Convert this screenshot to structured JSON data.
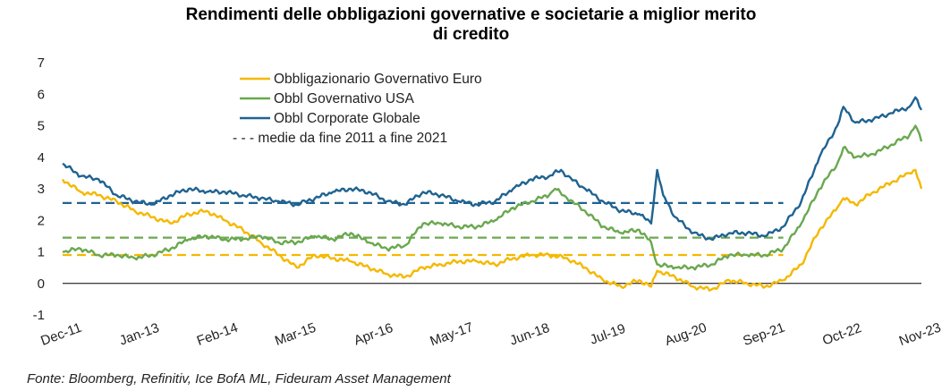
{
  "chart_data": {
    "type": "line",
    "title_line1": "Rendimenti delle obbligazioni governative e societarie a miglior merito",
    "title_line2": "di credito",
    "xlabel": "",
    "ylabel": "",
    "ylim": [
      -1,
      7
    ],
    "yticks": [
      "-1",
      "0",
      "1",
      "2",
      "3",
      "4",
      "5",
      "6",
      "7"
    ],
    "x_range": [
      "2011-12",
      "2023-11"
    ],
    "x_tick_labels": [
      "Dec-11",
      "Jan-13",
      "Feb-14",
      "Mar-15",
      "Apr-16",
      "May-17",
      "Jun-18",
      "Jul-19",
      "Aug-20",
      "Sep-21",
      "Oct-22",
      "Nov-23"
    ],
    "x_tick_dates": [
      "2011-12",
      "2013-01",
      "2014-02",
      "2015-03",
      "2016-04",
      "2017-05",
      "2018-06",
      "2019-07",
      "2020-08",
      "2021-09",
      "2022-10",
      "2023-11"
    ],
    "grid": false,
    "legend_position": "top-left",
    "series": [
      {
        "name": "Obbligazionario Governativo Euro",
        "color": "#f5b800",
        "points": [
          [
            "2011-12",
            3.3
          ],
          [
            "2012-03",
            2.9
          ],
          [
            "2012-06",
            2.8
          ],
          [
            "2012-09",
            2.6
          ],
          [
            "2012-12",
            2.3
          ],
          [
            "2013-03",
            2.1
          ],
          [
            "2013-06",
            1.9
          ],
          [
            "2013-09",
            2.2
          ],
          [
            "2013-12",
            2.3
          ],
          [
            "2014-03",
            2.0
          ],
          [
            "2014-06",
            1.7
          ],
          [
            "2014-09",
            1.3
          ],
          [
            "2014-12",
            0.9
          ],
          [
            "2015-03",
            0.5
          ],
          [
            "2015-06",
            0.9
          ],
          [
            "2015-09",
            0.8
          ],
          [
            "2015-12",
            0.7
          ],
          [
            "2016-03",
            0.5
          ],
          [
            "2016-06",
            0.3
          ],
          [
            "2016-09",
            0.2
          ],
          [
            "2016-12",
            0.5
          ],
          [
            "2017-03",
            0.6
          ],
          [
            "2017-06",
            0.7
          ],
          [
            "2017-09",
            0.7
          ],
          [
            "2017-12",
            0.6
          ],
          [
            "2018-03",
            0.8
          ],
          [
            "2018-06",
            0.9
          ],
          [
            "2018-09",
            0.9
          ],
          [
            "2018-12",
            0.8
          ],
          [
            "2019-03",
            0.5
          ],
          [
            "2019-06",
            0.1
          ],
          [
            "2019-09",
            -0.1
          ],
          [
            "2019-12",
            0.1
          ],
          [
            "2020-02",
            -0.1
          ],
          [
            "2020-03",
            0.4
          ],
          [
            "2020-06",
            0.2
          ],
          [
            "2020-09",
            -0.1
          ],
          [
            "2020-12",
            -0.2
          ],
          [
            "2021-03",
            0.1
          ],
          [
            "2021-06",
            0.0
          ],
          [
            "2021-09",
            -0.1
          ],
          [
            "2021-12",
            0.1
          ],
          [
            "2022-03",
            0.6
          ],
          [
            "2022-06",
            1.7
          ],
          [
            "2022-09",
            2.4
          ],
          [
            "2022-10",
            2.7
          ],
          [
            "2022-12",
            2.5
          ],
          [
            "2023-03",
            2.9
          ],
          [
            "2023-06",
            3.2
          ],
          [
            "2023-09",
            3.5
          ],
          [
            "2023-10",
            3.6
          ],
          [
            "2023-11",
            3.0
          ]
        ]
      },
      {
        "name": "Obbl Governativo USA",
        "color": "#6aa84f",
        "points": [
          [
            "2011-12",
            1.0
          ],
          [
            "2012-03",
            1.1
          ],
          [
            "2012-06",
            0.9
          ],
          [
            "2012-09",
            0.9
          ],
          [
            "2012-12",
            0.8
          ],
          [
            "2013-03",
            0.9
          ],
          [
            "2013-06",
            1.1
          ],
          [
            "2013-09",
            1.4
          ],
          [
            "2013-12",
            1.5
          ],
          [
            "2014-03",
            1.4
          ],
          [
            "2014-06",
            1.4
          ],
          [
            "2014-09",
            1.5
          ],
          [
            "2014-12",
            1.3
          ],
          [
            "2015-03",
            1.3
          ],
          [
            "2015-06",
            1.5
          ],
          [
            "2015-09",
            1.4
          ],
          [
            "2015-12",
            1.6
          ],
          [
            "2016-03",
            1.3
          ],
          [
            "2016-06",
            1.1
          ],
          [
            "2016-09",
            1.2
          ],
          [
            "2016-12",
            1.9
          ],
          [
            "2017-03",
            1.9
          ],
          [
            "2017-06",
            1.8
          ],
          [
            "2017-09",
            1.8
          ],
          [
            "2017-12",
            2.0
          ],
          [
            "2018-03",
            2.4
          ],
          [
            "2018-06",
            2.6
          ],
          [
            "2018-09",
            2.8
          ],
          [
            "2018-10",
            3.0
          ],
          [
            "2018-12",
            2.7
          ],
          [
            "2019-03",
            2.3
          ],
          [
            "2019-06",
            1.8
          ],
          [
            "2019-09",
            1.6
          ],
          [
            "2019-12",
            1.7
          ],
          [
            "2020-02",
            1.3
          ],
          [
            "2020-03",
            0.6
          ],
          [
            "2020-06",
            0.5
          ],
          [
            "2020-09",
            0.5
          ],
          [
            "2020-12",
            0.6
          ],
          [
            "2021-03",
            0.9
          ],
          [
            "2021-06",
            0.9
          ],
          [
            "2021-09",
            0.9
          ],
          [
            "2021-12",
            1.1
          ],
          [
            "2022-03",
            1.9
          ],
          [
            "2022-06",
            3.0
          ],
          [
            "2022-09",
            3.8
          ],
          [
            "2022-10",
            4.3
          ],
          [
            "2022-12",
            4.0
          ],
          [
            "2023-03",
            4.1
          ],
          [
            "2023-06",
            4.4
          ],
          [
            "2023-09",
            4.7
          ],
          [
            "2023-10",
            5.0
          ],
          [
            "2023-11",
            4.5
          ]
        ]
      },
      {
        "name": "Obbl Corporate Globale",
        "color": "#1f6391",
        "points": [
          [
            "2011-12",
            3.8
          ],
          [
            "2012-03",
            3.4
          ],
          [
            "2012-06",
            3.3
          ],
          [
            "2012-09",
            2.8
          ],
          [
            "2012-12",
            2.6
          ],
          [
            "2013-03",
            2.5
          ],
          [
            "2013-06",
            2.8
          ],
          [
            "2013-09",
            3.0
          ],
          [
            "2013-12",
            2.9
          ],
          [
            "2014-03",
            2.9
          ],
          [
            "2014-06",
            2.8
          ],
          [
            "2014-09",
            2.7
          ],
          [
            "2014-12",
            2.6
          ],
          [
            "2015-03",
            2.5
          ],
          [
            "2015-06",
            2.7
          ],
          [
            "2015-09",
            2.9
          ],
          [
            "2015-12",
            3.0
          ],
          [
            "2016-03",
            2.9
          ],
          [
            "2016-06",
            2.6
          ],
          [
            "2016-09",
            2.5
          ],
          [
            "2016-12",
            2.9
          ],
          [
            "2017-03",
            2.8
          ],
          [
            "2017-06",
            2.6
          ],
          [
            "2017-09",
            2.5
          ],
          [
            "2017-12",
            2.6
          ],
          [
            "2018-03",
            3.0
          ],
          [
            "2018-06",
            3.3
          ],
          [
            "2018-09",
            3.4
          ],
          [
            "2018-11",
            3.6
          ],
          [
            "2018-12",
            3.4
          ],
          [
            "2019-03",
            3.0
          ],
          [
            "2019-06",
            2.6
          ],
          [
            "2019-09",
            2.3
          ],
          [
            "2019-12",
            2.2
          ],
          [
            "2020-02",
            1.9
          ],
          [
            "2020-03",
            3.6
          ],
          [
            "2020-04",
            2.8
          ],
          [
            "2020-06",
            2.1
          ],
          [
            "2020-09",
            1.6
          ],
          [
            "2020-12",
            1.4
          ],
          [
            "2021-03",
            1.6
          ],
          [
            "2021-06",
            1.6
          ],
          [
            "2021-09",
            1.5
          ],
          [
            "2021-12",
            1.8
          ],
          [
            "2022-03",
            2.6
          ],
          [
            "2022-06",
            4.0
          ],
          [
            "2022-09",
            5.0
          ],
          [
            "2022-10",
            5.6
          ],
          [
            "2022-12",
            5.1
          ],
          [
            "2023-03",
            5.2
          ],
          [
            "2023-06",
            5.4
          ],
          [
            "2023-09",
            5.6
          ],
          [
            "2023-10",
            5.9
          ],
          [
            "2023-11",
            5.5
          ]
        ]
      }
    ],
    "averages_legend": "- - - medie da fine 2011 a fine 2021",
    "averages": [
      {
        "series": "Obbligazionario Governativo Euro",
        "value": 0.9,
        "color": "#f5b800"
      },
      {
        "series": "Obbl Governativo USA",
        "value": 1.45,
        "color": "#6aa84f"
      },
      {
        "series": "Obbl Corporate Globale",
        "value": 2.55,
        "color": "#1f6391"
      }
    ],
    "avg_line_range": [
      "2011-12",
      "2021-12"
    ]
  },
  "source_note": "Fonte: Bloomberg, Refinitiv, Ice BofA ML, Fideuram Asset Management"
}
